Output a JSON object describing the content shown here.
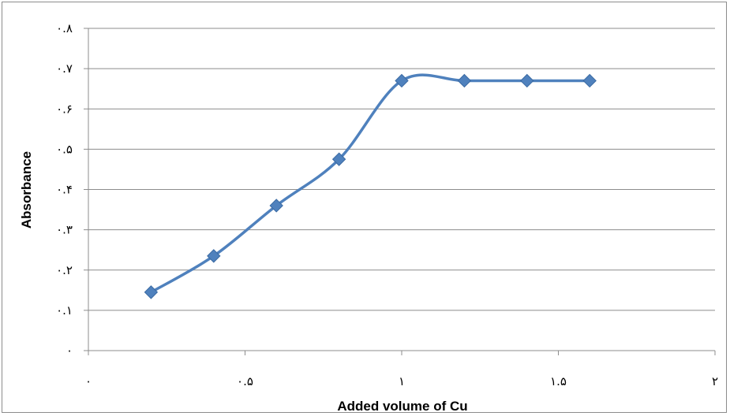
{
  "chart_data": {
    "type": "line",
    "title": "",
    "xlabel": "Added volume of Cu",
    "ylabel": "Absorbance",
    "xlim": [
      0,
      2
    ],
    "ylim": [
      0,
      0.8
    ],
    "grid": "horizontal",
    "legend": "none",
    "x_ticks": [
      {
        "value": 0,
        "label": "۰"
      },
      {
        "value": 0.5,
        "label": "۰.۵"
      },
      {
        "value": 1,
        "label": "۱"
      },
      {
        "value": 1.5,
        "label": "۱.۵"
      },
      {
        "value": 2,
        "label": "۲"
      }
    ],
    "y_ticks": [
      {
        "value": 0,
        "label": "۰"
      },
      {
        "value": 0.1,
        "label": "۰.۱"
      },
      {
        "value": 0.2,
        "label": "۰.۲"
      },
      {
        "value": 0.3,
        "label": "۰.۳"
      },
      {
        "value": 0.4,
        "label": "۰.۴"
      },
      {
        "value": 0.5,
        "label": "۰.۵"
      },
      {
        "value": 0.6,
        "label": "۰.۶"
      },
      {
        "value": 0.7,
        "label": "۰.۷"
      },
      {
        "value": 0.8,
        "label": "۰.۸"
      }
    ],
    "series": [
      {
        "color": "#4F81BD",
        "marker": "diamond",
        "smooth": true,
        "x": [
          0.2,
          0.4,
          0.6,
          0.8,
          1.0,
          1.2,
          1.4,
          1.6
        ],
        "y": [
          0.145,
          0.235,
          0.36,
          0.475,
          0.67,
          0.67,
          0.67,
          0.67
        ]
      }
    ]
  }
}
